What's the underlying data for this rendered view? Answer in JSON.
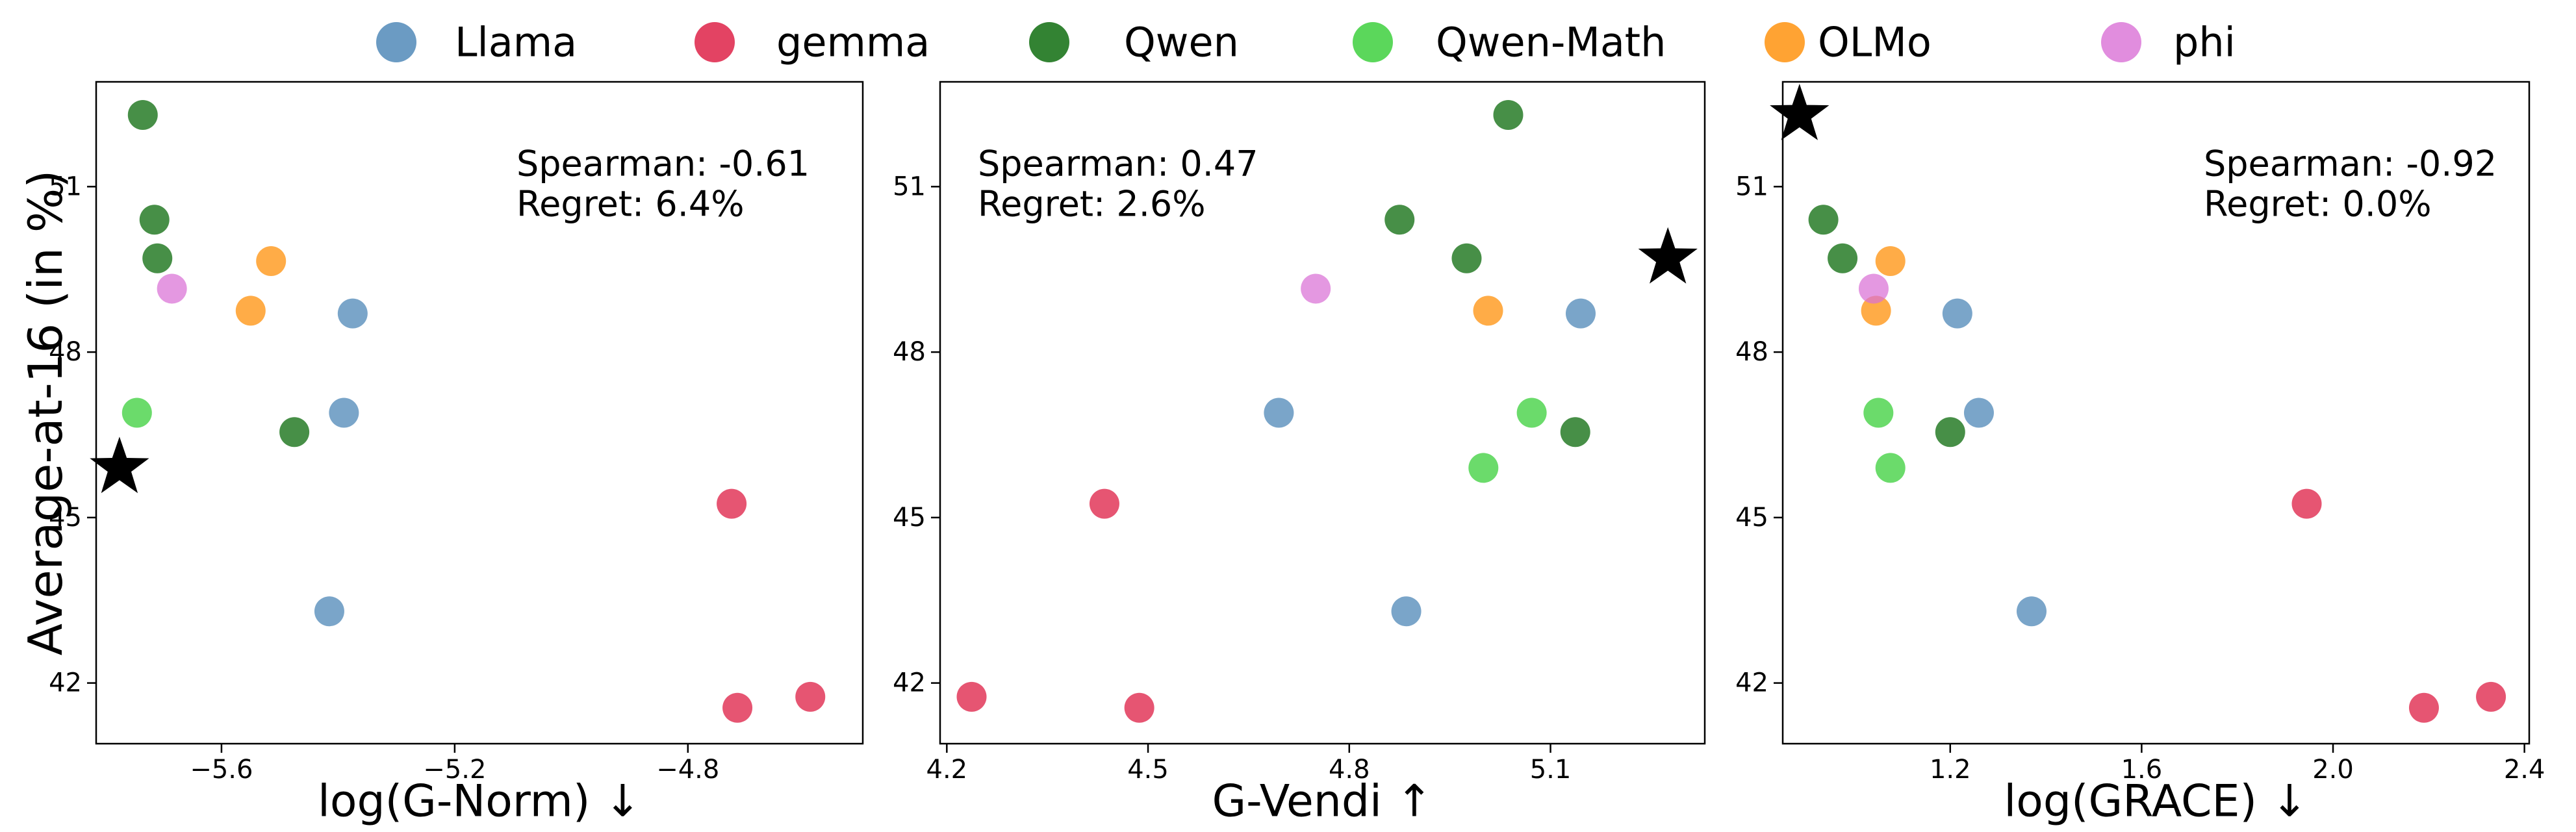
{
  "legend": {
    "placement": "top-center",
    "items": [
      {
        "name": "Llama",
        "color": "#4682b4"
      },
      {
        "name": "gemma",
        "color": "#dc143c"
      },
      {
        "name": "Qwen",
        "color": "#006400"
      },
      {
        "name": "Qwen-Math",
        "color": "#32cd32"
      },
      {
        "name": "OLMo",
        "color": "#ff8c00"
      },
      {
        "name": "phi",
        "color": "#da70d6"
      }
    ]
  },
  "chart_data": [
    {
      "type": "scatter",
      "xlabel": "log(G-Norm) ↓",
      "ylabel": "Average-at-16 (in %)",
      "xlim": [
        -5.815,
        -4.5
      ],
      "ylim": [
        40.9,
        52.9
      ],
      "xticks": [
        -5.6,
        -5.2,
        -4.8
      ],
      "xtick_labels": [
        "−5.6",
        "−5.2",
        "−4.8"
      ],
      "yticks": [
        42,
        45,
        48,
        51
      ],
      "ytick_labels": [
        "42",
        "45",
        "48",
        "51"
      ],
      "grid": false,
      "annotation": [
        "Spearman: -0.61",
        "Regret: 6.4%"
      ],
      "star": {
        "x": -5.775,
        "y": 45.9
      },
      "series": [
        {
          "name": "Llama",
          "color": "#4682b4",
          "points": [
            [
              -5.375,
              48.7
            ],
            [
              -5.39,
              46.9
            ],
            [
              -5.415,
              43.3
            ]
          ]
        },
        {
          "name": "gemma",
          "color": "#dc143c",
          "points": [
            [
              -4.725,
              45.25
            ],
            [
              -4.715,
              41.55
            ],
            [
              -4.59,
              41.75
            ]
          ]
        },
        {
          "name": "Qwen",
          "color": "#006400",
          "points": [
            [
              -5.735,
              52.3
            ],
            [
              -5.715,
              50.4
            ],
            [
              -5.71,
              49.7
            ],
            [
              -5.475,
              46.55
            ]
          ]
        },
        {
          "name": "Qwen-Math",
          "color": "#32cd32",
          "points": [
            [
              -5.745,
              46.9
            ]
          ]
        },
        {
          "name": "OLMo",
          "color": "#ff8c00",
          "points": [
            [
              -5.515,
              49.65
            ],
            [
              -5.55,
              48.75
            ]
          ]
        },
        {
          "name": "phi",
          "color": "#da70d6",
          "points": [
            [
              -5.685,
              49.15
            ]
          ]
        }
      ]
    },
    {
      "type": "scatter",
      "xlabel": "G-Vendi ↑",
      "ylabel": "",
      "xlim": [
        4.19,
        5.33
      ],
      "ylim": [
        40.9,
        52.9
      ],
      "xticks": [
        4.2,
        4.5,
        4.8,
        5.1
      ],
      "xtick_labels": [
        "4.2",
        "4.5",
        "4.8",
        "5.1"
      ],
      "yticks": [
        42,
        45,
        48,
        51
      ],
      "ytick_labels": [
        "42",
        "45",
        "48",
        "51"
      ],
      "grid": false,
      "annotation": [
        "Spearman: 0.47",
        "Regret: 2.6%"
      ],
      "star": {
        "x": 5.275,
        "y": 49.7
      },
      "series": [
        {
          "name": "Llama",
          "color": "#4682b4",
          "points": [
            [
              5.145,
              48.7
            ],
            [
              4.695,
              46.9
            ],
            [
              4.885,
              43.3
            ]
          ]
        },
        {
          "name": "gemma",
          "color": "#dc143c",
          "points": [
            [
              4.435,
              45.25
            ],
            [
              4.487,
              41.55
            ],
            [
              4.237,
              41.75
            ]
          ]
        },
        {
          "name": "Qwen",
          "color": "#006400",
          "points": [
            [
              5.037,
              52.3
            ],
            [
              4.875,
              50.4
            ],
            [
              4.975,
              49.7
            ],
            [
              5.137,
              46.55
            ]
          ]
        },
        {
          "name": "Qwen-Math",
          "color": "#32cd32",
          "points": [
            [
              5.072,
              46.9
            ],
            [
              5.0,
              45.9
            ]
          ]
        },
        {
          "name": "OLMo",
          "color": "#ff8c00",
          "points": [
            [
              5.007,
              48.75
            ]
          ]
        },
        {
          "name": "phi",
          "color": "#da70d6",
          "points": [
            [
              4.75,
              49.15
            ]
          ]
        }
      ]
    },
    {
      "type": "scatter",
      "xlabel": "log(GRACE) ↓",
      "ylabel": "",
      "xlim": [
        0.85,
        2.41
      ],
      "ylim": [
        40.9,
        52.9
      ],
      "xticks": [
        1.2,
        1.6,
        2.0,
        2.4
      ],
      "xtick_labels": [
        "1.2",
        "1.6",
        "2.0",
        "2.4"
      ],
      "yticks": [
        42,
        45,
        48,
        51
      ],
      "ytick_labels": [
        "42",
        "45",
        "48",
        "51"
      ],
      "grid": false,
      "annotation": [
        "Spearman: -0.92",
        "Regret: 0.0%"
      ],
      "star": {
        "x": 0.885,
        "y": 52.3
      },
      "series": [
        {
          "name": "Llama",
          "color": "#4682b4",
          "points": [
            [
              1.215,
              48.7
            ],
            [
              1.26,
              46.9
            ],
            [
              1.37,
              43.3
            ]
          ]
        },
        {
          "name": "gemma",
          "color": "#dc143c",
          "points": [
            [
              1.945,
              45.25
            ],
            [
              2.19,
              41.55
            ],
            [
              2.33,
              41.75
            ]
          ]
        },
        {
          "name": "Qwen",
          "color": "#006400",
          "points": [
            [
              0.935,
              50.4
            ],
            [
              0.975,
              49.7
            ],
            [
              1.2,
              46.55
            ]
          ]
        },
        {
          "name": "Qwen-Math",
          "color": "#32cd32",
          "points": [
            [
              1.05,
              46.9
            ],
            [
              1.075,
              45.9
            ]
          ]
        },
        {
          "name": "OLMo",
          "color": "#ff8c00",
          "points": [
            [
              1.075,
              49.65
            ],
            [
              1.045,
              48.75
            ]
          ]
        },
        {
          "name": "phi",
          "color": "#da70d6",
          "points": [
            [
              1.04,
              49.15
            ]
          ]
        }
      ]
    }
  ]
}
